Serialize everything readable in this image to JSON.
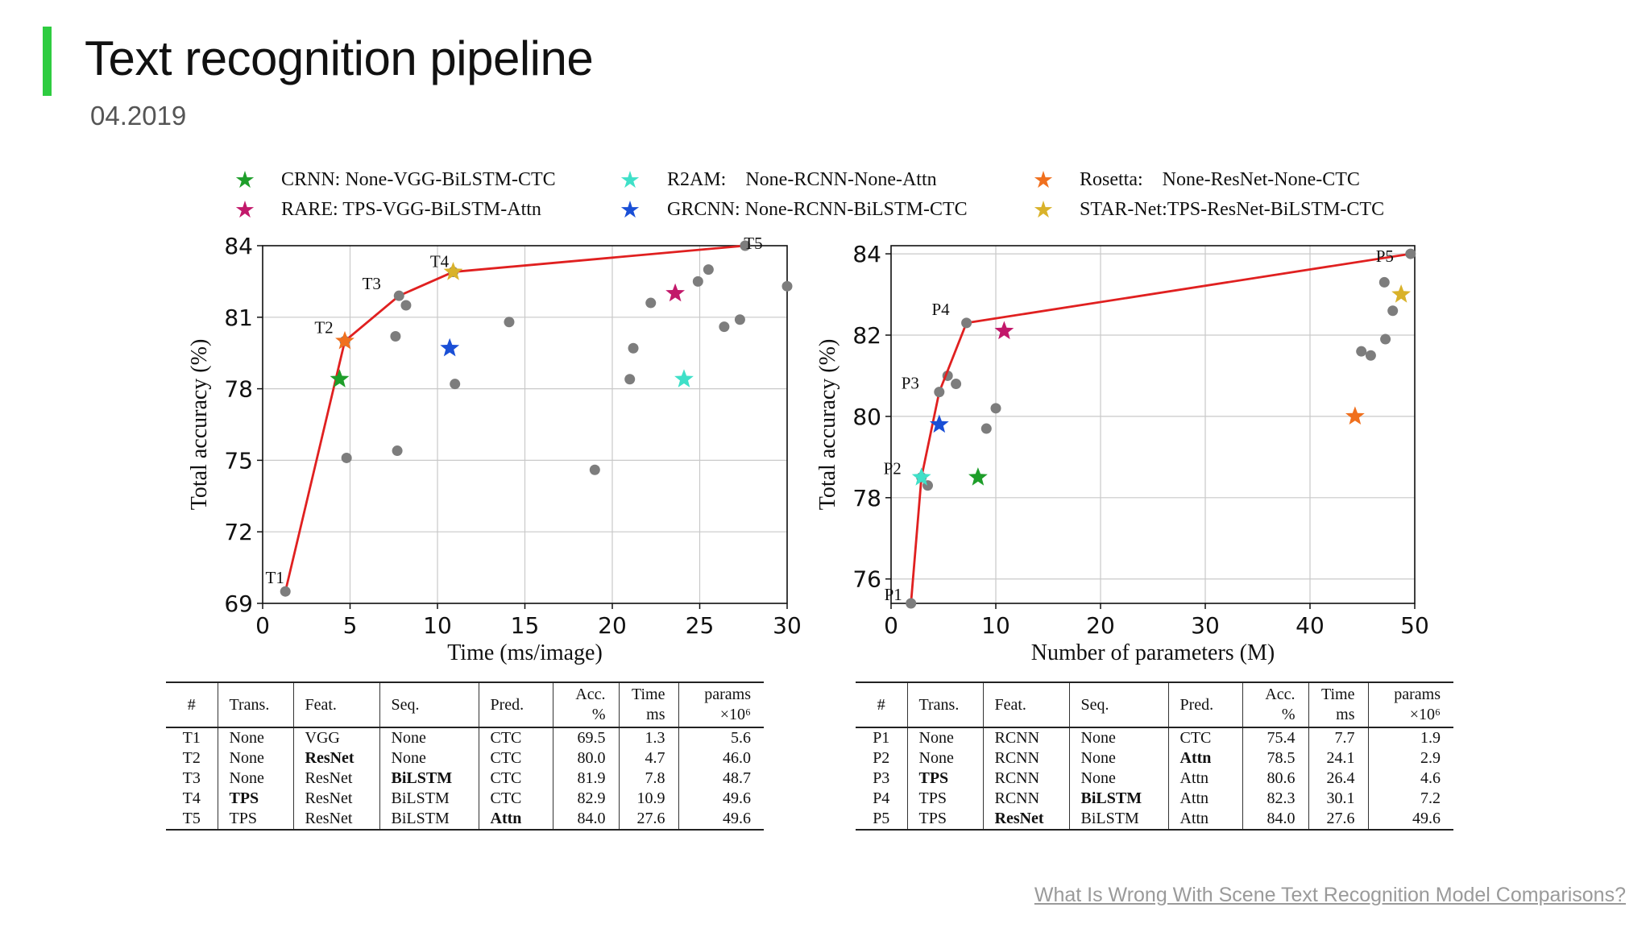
{
  "header": {
    "title": "Text recognition pipeline",
    "date": "04.2019",
    "accent_color": "#2ecc40"
  },
  "legend": [
    {
      "label": "CRNN: None-VGG-BiLSTM-CTC",
      "color": "#1e9e2a",
      "icon": "star-icon"
    },
    {
      "label": "RARE: TPS-VGG-BiLSTM-Attn",
      "color": "#c2186a",
      "icon": "star-icon"
    },
    {
      "label": "R2AM:    None-RCNN-None-Attn",
      "color": "#3fe0c8",
      "icon": "star-icon"
    },
    {
      "label": "GRCNN: None-RCNN-BiLSTM-CTC",
      "color": "#1a4fd6",
      "icon": "star-icon"
    },
    {
      "label": "Rosetta:    None-ResNet-None-CTC",
      "color": "#f0701e",
      "icon": "star-icon"
    },
    {
      "label": "STAR-Net:TPS-ResNet-BiLSTM-CTC",
      "color": "#d9b22a",
      "icon": "star-icon"
    }
  ],
  "chart_data": [
    {
      "type": "scatter",
      "xlabel": "Time (ms/image)",
      "ylabel": "Total accuracy (%)",
      "xlim": [
        0,
        30
      ],
      "ylim": [
        69,
        84
      ],
      "xticks": [
        "0",
        "5",
        "10",
        "15",
        "20",
        "25",
        "30"
      ],
      "yticks": [
        "69",
        "72",
        "75",
        "78",
        "81",
        "84"
      ],
      "grid": true,
      "frontier": {
        "color": "#e02020",
        "labels": [
          "T1",
          "T2",
          "T3",
          "T4",
          "T5"
        ],
        "x": [
          1.3,
          4.7,
          7.8,
          10.9,
          27.6
        ],
        "y": [
          69.5,
          80.0,
          81.9,
          82.9,
          84.0
        ]
      },
      "gray_points": {
        "x": [
          4.8,
          7.6,
          7.7,
          8.2,
          11.0,
          14.1,
          19.0,
          21.0,
          21.2,
          22.2,
          24.9,
          25.5,
          26.4,
          27.3,
          30.0
        ],
        "y": [
          75.1,
          80.2,
          75.4,
          81.5,
          78.2,
          80.8,
          74.6,
          78.4,
          79.7,
          81.6,
          82.5,
          83.0,
          80.6,
          80.9,
          82.3
        ]
      },
      "stars": [
        {
          "model": "CRNN",
          "x": 4.4,
          "y": 78.4,
          "color": "#1e9e2a"
        },
        {
          "model": "Rosetta",
          "x": 4.7,
          "y": 80.0,
          "color": "#f0701e"
        },
        {
          "model": "GRCNN",
          "x": 10.7,
          "y": 79.7,
          "color": "#1a4fd6"
        },
        {
          "model": "STAR-Net",
          "x": 10.9,
          "y": 82.9,
          "color": "#d9b22a"
        },
        {
          "model": "RARE",
          "x": 23.6,
          "y": 82.0,
          "color": "#c2186a"
        },
        {
          "model": "R2AM",
          "x": 24.1,
          "y": 78.4,
          "color": "#3fe0c8"
        }
      ]
    },
    {
      "type": "scatter",
      "xlabel": "Number of parameters (M)",
      "ylabel": "Total accuracy (%)",
      "xlim": [
        0,
        50
      ],
      "ylim": [
        75.4,
        84.2
      ],
      "xticks": [
        "0",
        "10",
        "20",
        "30",
        "40",
        "50"
      ],
      "yticks": [
        "76",
        "78",
        "80",
        "82",
        "84"
      ],
      "grid": true,
      "frontier": {
        "color": "#e02020",
        "labels": [
          "P1",
          "P2",
          "P3",
          "P4",
          "P5"
        ],
        "x": [
          1.9,
          2.9,
          4.6,
          7.2,
          49.6
        ],
        "y": [
          75.4,
          78.5,
          80.6,
          82.3,
          84.0
        ]
      },
      "gray_points": {
        "x": [
          3.5,
          5.4,
          6.2,
          9.1,
          10.0,
          44.9,
          45.8,
          47.2,
          47.9,
          47.1
        ],
        "y": [
          78.3,
          81.0,
          80.8,
          79.7,
          80.2,
          81.6,
          81.5,
          81.9,
          82.6,
          83.3
        ]
      },
      "stars": [
        {
          "model": "R2AM",
          "x": 2.9,
          "y": 78.5,
          "color": "#3fe0c8"
        },
        {
          "model": "GRCNN",
          "x": 4.6,
          "y": 79.8,
          "color": "#1a4fd6"
        },
        {
          "model": "CRNN",
          "x": 8.3,
          "y": 78.5,
          "color": "#1e9e2a"
        },
        {
          "model": "RARE",
          "x": 10.8,
          "y": 82.1,
          "color": "#c2186a"
        },
        {
          "model": "Rosetta",
          "x": 44.3,
          "y": 80.0,
          "color": "#f0701e"
        },
        {
          "model": "STAR-Net",
          "x": 48.7,
          "y": 83.0,
          "color": "#d9b22a"
        }
      ]
    }
  ],
  "tables": [
    {
      "headers": [
        "#",
        "Trans.",
        "Feat.",
        "Seq.",
        "Pred.",
        "Acc.",
        "%",
        "Time",
        "ms",
        "params",
        "×10⁶"
      ],
      "rows": [
        {
          "id": "T1",
          "trans": "None",
          "feat": "VGG",
          "seq": "None",
          "pred": "CTC",
          "acc": "69.5",
          "time": "1.3",
          "params": "5.6",
          "bold": []
        },
        {
          "id": "T2",
          "trans": "None",
          "feat": "ResNet",
          "seq": "None",
          "pred": "CTC",
          "acc": "80.0",
          "time": "4.7",
          "params": "46.0",
          "bold": [
            "feat"
          ]
        },
        {
          "id": "T3",
          "trans": "None",
          "feat": "ResNet",
          "seq": "BiLSTM",
          "pred": "CTC",
          "acc": "81.9",
          "time": "7.8",
          "params": "48.7",
          "bold": [
            "seq"
          ]
        },
        {
          "id": "T4",
          "trans": "TPS",
          "feat": "ResNet",
          "seq": "BiLSTM",
          "pred": "CTC",
          "acc": "82.9",
          "time": "10.9",
          "params": "49.6",
          "bold": [
            "trans"
          ]
        },
        {
          "id": "T5",
          "trans": "TPS",
          "feat": "ResNet",
          "seq": "BiLSTM",
          "pred": "Attn",
          "acc": "84.0",
          "time": "27.6",
          "params": "49.6",
          "bold": [
            "pred"
          ]
        }
      ]
    },
    {
      "headers": [
        "#",
        "Trans.",
        "Feat.",
        "Seq.",
        "Pred.",
        "Acc.",
        "%",
        "Time",
        "ms",
        "params",
        "×10⁶"
      ],
      "rows": [
        {
          "id": "P1",
          "trans": "None",
          "feat": "RCNN",
          "seq": "None",
          "pred": "CTC",
          "acc": "75.4",
          "time": "7.7",
          "params": "1.9",
          "bold": []
        },
        {
          "id": "P2",
          "trans": "None",
          "feat": "RCNN",
          "seq": "None",
          "pred": "Attn",
          "acc": "78.5",
          "time": "24.1",
          "params": "2.9",
          "bold": [
            "pred"
          ]
        },
        {
          "id": "P3",
          "trans": "TPS",
          "feat": "RCNN",
          "seq": "None",
          "pred": "Attn",
          "acc": "80.6",
          "time": "26.4",
          "params": "4.6",
          "bold": [
            "trans"
          ]
        },
        {
          "id": "P4",
          "trans": "TPS",
          "feat": "RCNN",
          "seq": "BiLSTM",
          "pred": "Attn",
          "acc": "82.3",
          "time": "30.1",
          "params": "7.2",
          "bold": [
            "seq"
          ]
        },
        {
          "id": "P5",
          "trans": "TPS",
          "feat": "ResNet",
          "seq": "BiLSTM",
          "pred": "Attn",
          "acc": "84.0",
          "time": "27.6",
          "params": "49.6",
          "bold": [
            "feat"
          ]
        }
      ]
    }
  ],
  "source_link": "What Is Wrong With Scene Text Recognition Model Comparisons?"
}
